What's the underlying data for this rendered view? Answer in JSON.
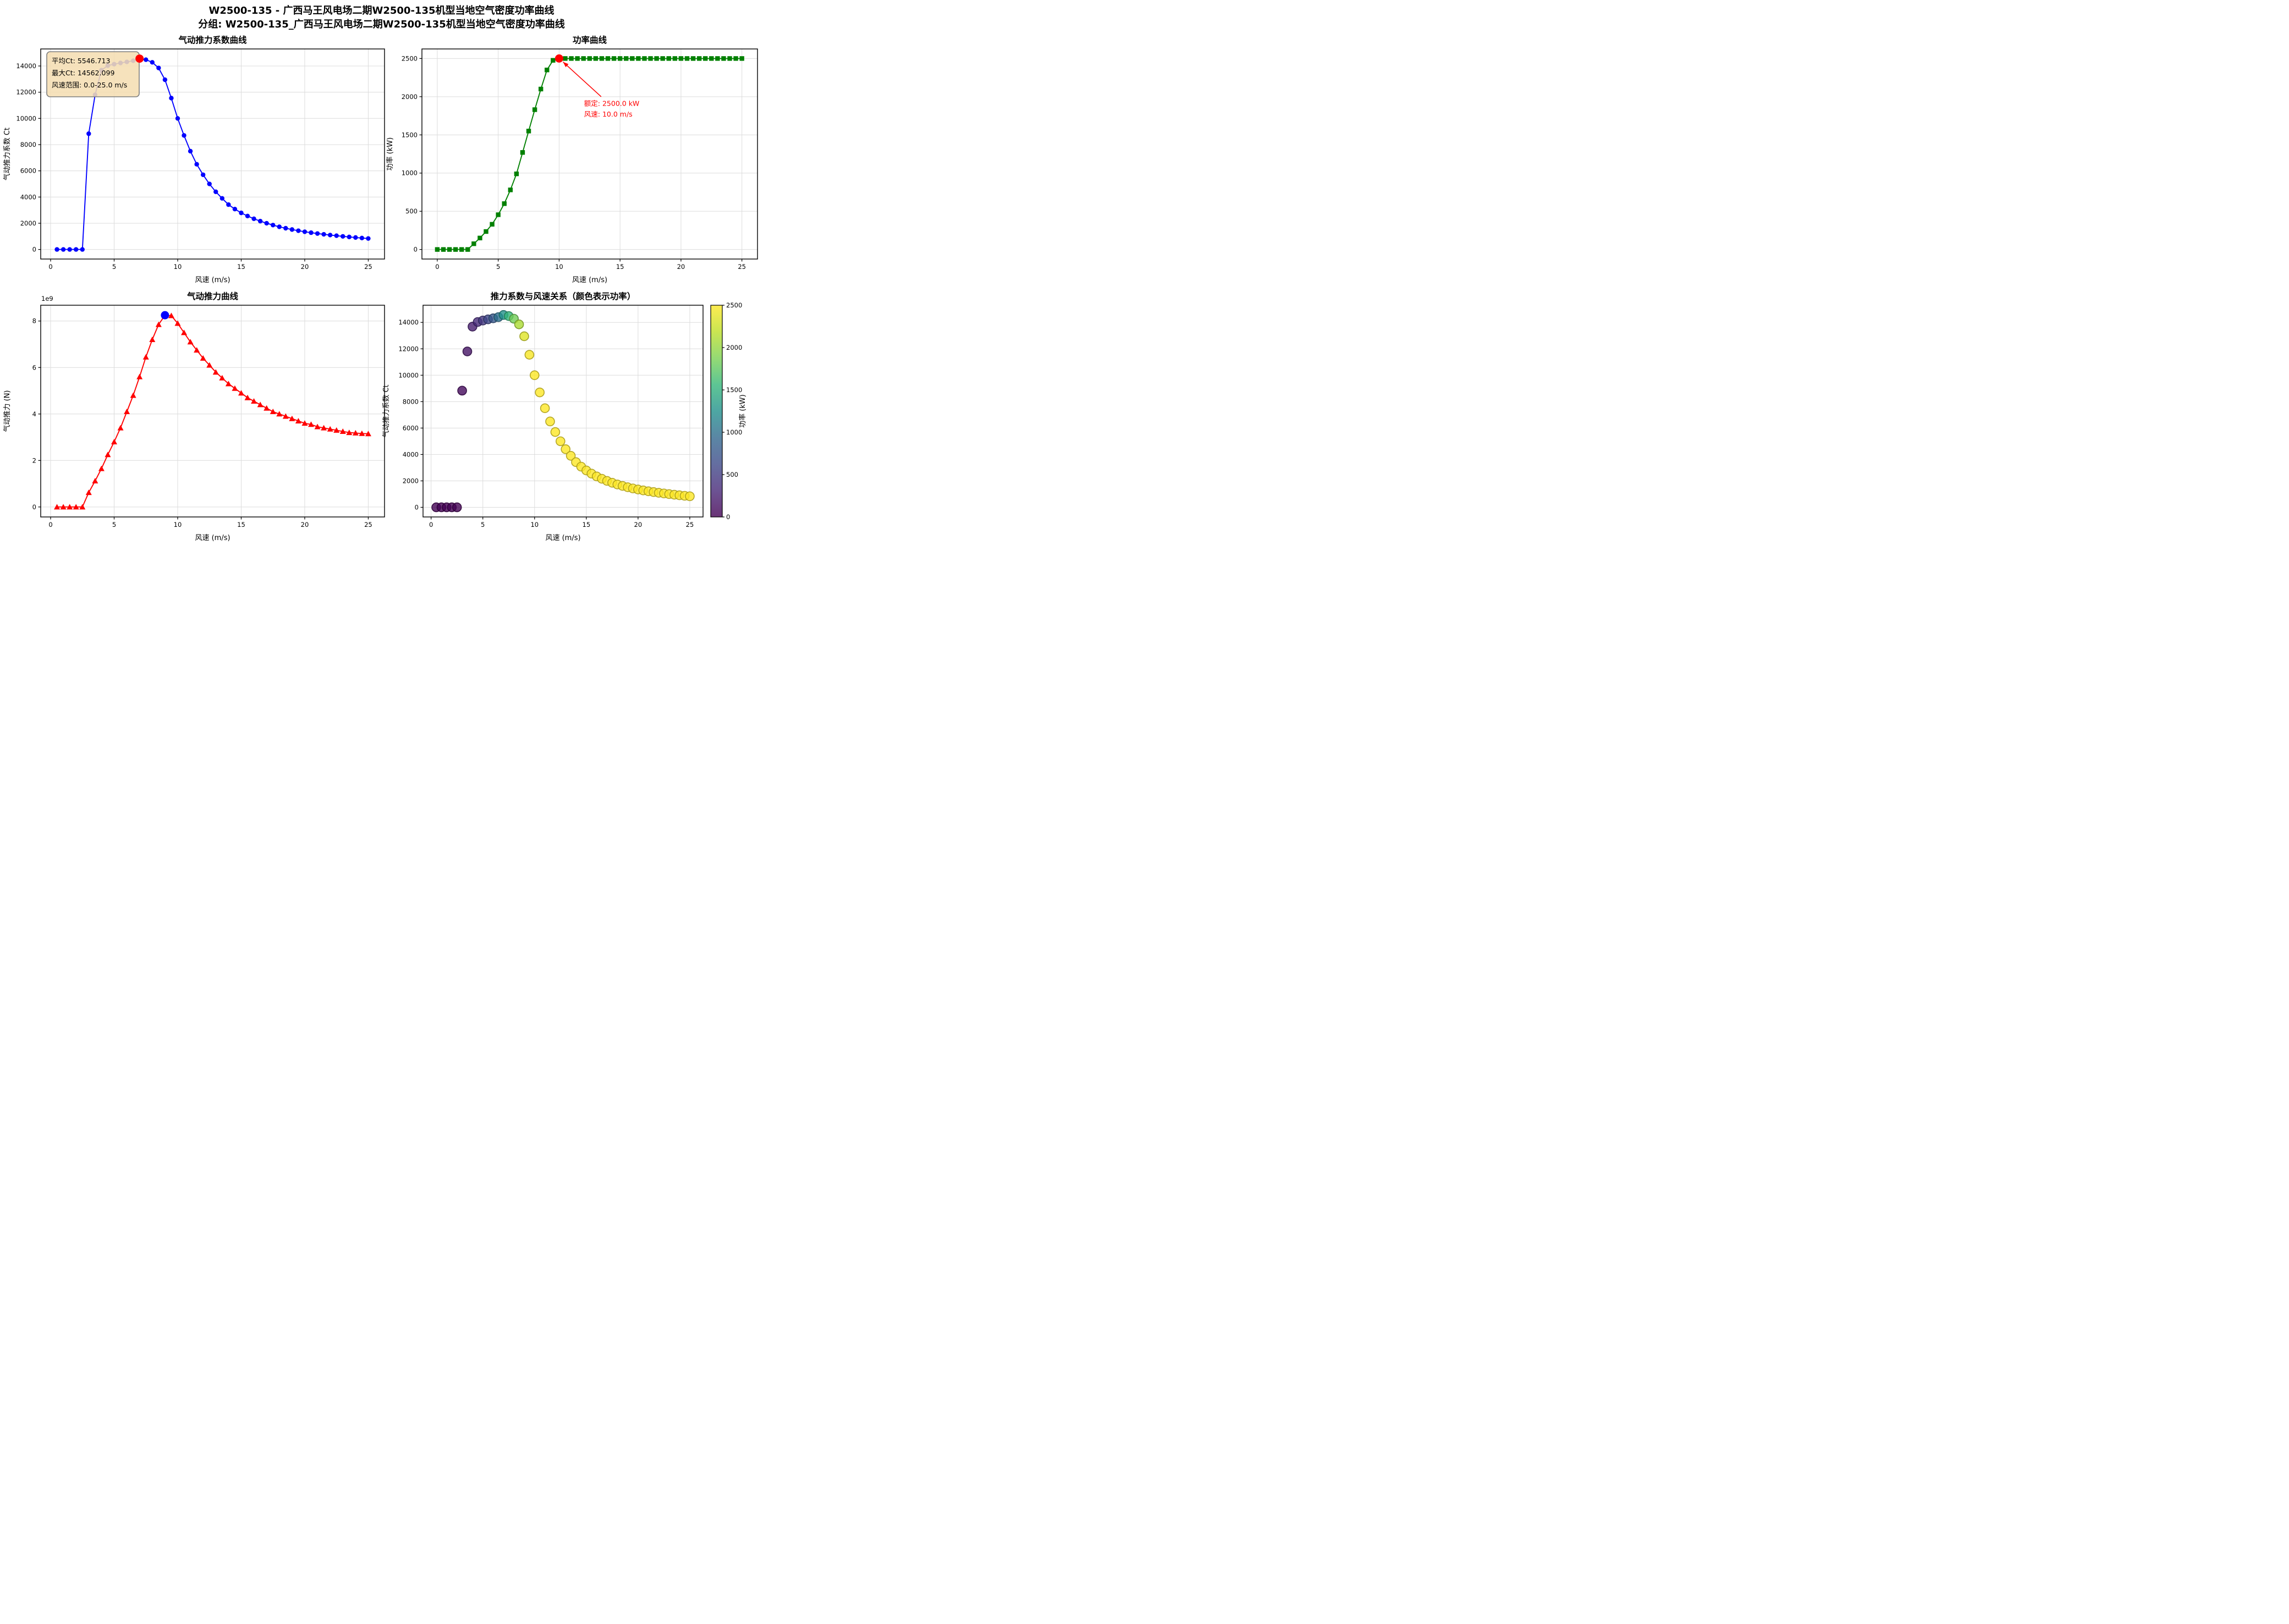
{
  "figure": {
    "title": "W2500-135 - 广西马王风电场二期W2500-135机型当地空气密度功率曲线",
    "subtitle": "分组: W2500-135_广西马王风电场二期W2500-135机型当地空气密度功率曲线",
    "background": "#ffffff",
    "grid_color": "#dcdcdc",
    "spine_color": "#000000"
  },
  "chart_data": [
    {
      "id": "ct_curve",
      "type": "line",
      "title": "气动推力系数曲线",
      "xlabel": "风速 (m/s)",
      "ylabel": "气动推力系数 Ct",
      "line_color": "#0000ff",
      "marker": "circle",
      "grid": true,
      "xlim": [
        -0.78,
        26.28
      ],
      "ylim": [
        -730,
        15300
      ],
      "xticks": [
        0,
        5,
        10,
        15,
        20,
        25
      ],
      "yticks": [
        0,
        2000,
        4000,
        6000,
        8000,
        10000,
        12000,
        14000
      ],
      "x": [
        0.5,
        1,
        1.5,
        2,
        2.5,
        3,
        3.5,
        4,
        4.5,
        5,
        5.5,
        6,
        6.5,
        7,
        7.5,
        8,
        8.5,
        9,
        9.5,
        10,
        10.5,
        11,
        11.5,
        12,
        12.5,
        13,
        13.5,
        14,
        14.5,
        15,
        15.5,
        16,
        16.5,
        17,
        17.5,
        18,
        18.5,
        19,
        19.5,
        20,
        20.5,
        21,
        21.5,
        22,
        22.5,
        23,
        23.5,
        24,
        24.5,
        25
      ],
      "y": [
        0,
        0,
        0,
        0,
        0,
        8832,
        11800,
        13680,
        14030,
        14140,
        14230,
        14310,
        14400,
        14562,
        14480,
        14280,
        13850,
        12950,
        11550,
        10000,
        8700,
        7500,
        6500,
        5700,
        5000,
        4400,
        3900,
        3420,
        3080,
        2790,
        2550,
        2340,
        2160,
        2000,
        1860,
        1730,
        1620,
        1520,
        1430,
        1350,
        1280,
        1215,
        1155,
        1100,
        1050,
        1000,
        955,
        912,
        873,
        837
      ],
      "max_point": {
        "x": 7.0,
        "y": 14562.099,
        "color": "#ff0000"
      },
      "info_box": {
        "lines": [
          "平均Ct: 5546.713",
          "最大Ct: 14562.099",
          "风速范围: 0.0-25.0 m/s"
        ],
        "fill": "#f5deb3",
        "border": "#7f7f7f"
      }
    },
    {
      "id": "power_curve",
      "type": "line",
      "title": "功率曲线",
      "xlabel": "风速 (m/s)",
      "ylabel": "功率 (kW)",
      "line_color": "#008000",
      "marker": "square",
      "grid": true,
      "xlim": [
        -1.26,
        26.28
      ],
      "ylim": [
        -125,
        2625
      ],
      "xticks": [
        0,
        5,
        10,
        15,
        20,
        25
      ],
      "yticks": [
        0,
        500,
        1000,
        1500,
        2000,
        2500
      ],
      "x": [
        0,
        0.5,
        1,
        1.5,
        2,
        2.5,
        3,
        3.5,
        4,
        4.5,
        5,
        5.5,
        6,
        6.5,
        7,
        7.5,
        8,
        8.5,
        9,
        9.5,
        10,
        10.5,
        11,
        11.5,
        12,
        12.5,
        13,
        13.5,
        14,
        14.5,
        15,
        15.5,
        16,
        16.5,
        17,
        17.5,
        18,
        18.5,
        19,
        19.5,
        20,
        20.5,
        21,
        21.5,
        22,
        22.5,
        23,
        23.5,
        24,
        24.5,
        25
      ],
      "y": [
        0,
        0,
        0,
        0,
        0,
        0,
        75,
        150,
        235,
        330,
        455,
        600,
        780,
        990,
        1270,
        1550,
        1830,
        2100,
        2350,
        2476,
        2500,
        2500,
        2500,
        2500,
        2500,
        2500,
        2500,
        2500,
        2500,
        2500,
        2500,
        2500,
        2500,
        2500,
        2500,
        2500,
        2500,
        2500,
        2500,
        2500,
        2500,
        2500,
        2500,
        2500,
        2500,
        2500,
        2500,
        2500,
        2500,
        2500,
        2500
      ],
      "rated_point": {
        "x": 10.0,
        "y": 2500.0,
        "color": "#ff0000"
      },
      "annotation": {
        "lines": [
          "额定: 2500.0 kW",
          "风速: 10.0 m/s"
        ],
        "color": "#ff0000",
        "text_xy": [
          12.05,
          1880
        ],
        "line_gap_kw": 140,
        "arrow_from": [
          13.45,
          2000
        ],
        "arrow_to": [
          10.32,
          2455
        ]
      }
    },
    {
      "id": "thrust_curve",
      "type": "line",
      "title": "气动推力曲线",
      "xlabel": "风速 (m/s)",
      "ylabel": "气动推力 (N)",
      "offset_text": "1e9",
      "y_scale": "1e9",
      "line_color": "#ff0000",
      "marker": "triangle",
      "grid": true,
      "xlim": [
        -0.78,
        26.28
      ],
      "ylim": [
        -0.43,
        8.68
      ],
      "xticks": [
        0,
        5,
        10,
        15,
        20,
        25
      ],
      "yticks": [
        0,
        2,
        4,
        6,
        8
      ],
      "x": [
        0.5,
        1,
        1.5,
        2,
        2.5,
        3,
        3.5,
        4,
        4.5,
        5,
        5.5,
        6,
        6.5,
        7,
        7.5,
        8,
        8.5,
        9,
        9.5,
        10,
        10.5,
        11,
        11.5,
        12,
        12.5,
        13,
        13.5,
        14,
        14.5,
        15,
        15.5,
        16,
        16.5,
        17,
        17.5,
        18,
        18.5,
        19,
        19.5,
        20,
        20.5,
        21,
        21.5,
        22,
        22.5,
        23,
        23.5,
        24,
        24.5,
        25
      ],
      "y": [
        0,
        0,
        0,
        0,
        0,
        0.62,
        1.12,
        1.65,
        2.25,
        2.8,
        3.4,
        4.1,
        4.8,
        5.6,
        6.45,
        7.2,
        7.85,
        8.25,
        8.23,
        7.9,
        7.5,
        7.1,
        6.75,
        6.4,
        6.1,
        5.8,
        5.55,
        5.3,
        5.1,
        4.9,
        4.7,
        4.55,
        4.4,
        4.25,
        4.1,
        4.0,
        3.9,
        3.8,
        3.7,
        3.6,
        3.55,
        3.45,
        3.4,
        3.35,
        3.3,
        3.25,
        3.2,
        3.18,
        3.16,
        3.15
      ],
      "max_point": {
        "x": 9.0,
        "y": 8.25,
        "color": "#0000ff"
      }
    },
    {
      "id": "ct_power_scatter",
      "type": "scatter",
      "title": "推力系数与风速关系（颜色表示功率）",
      "xlabel": "风速 (m/s)",
      "ylabel": "气动推力系数 Ct",
      "marker": "circle",
      "grid": true,
      "alpha": 0.8,
      "xlim": [
        -0.78,
        26.28
      ],
      "ylim": [
        -730,
        15300
      ],
      "xticks": [
        0,
        5,
        10,
        15,
        20,
        25
      ],
      "yticks": [
        0,
        2000,
        4000,
        6000,
        8000,
        10000,
        12000,
        14000
      ],
      "x": [
        0.5,
        1,
        1.5,
        2,
        2.5,
        3,
        3.5,
        4,
        4.5,
        5,
        5.5,
        6,
        6.5,
        7,
        7.5,
        8,
        8.5,
        9,
        9.5,
        10,
        10.5,
        11,
        11.5,
        12,
        12.5,
        13,
        13.5,
        14,
        14.5,
        15,
        15.5,
        16,
        16.5,
        17,
        17.5,
        18,
        18.5,
        19,
        19.5,
        20,
        20.5,
        21,
        21.5,
        22,
        22.5,
        23,
        23.5,
        24,
        24.5,
        25
      ],
      "y": [
        0,
        0,
        0,
        0,
        0,
        8832,
        11800,
        13680,
        14030,
        14140,
        14230,
        14310,
        14400,
        14562,
        14480,
        14280,
        13850,
        12950,
        11550,
        10000,
        8700,
        7500,
        6500,
        5700,
        5000,
        4400,
        3900,
        3420,
        3080,
        2790,
        2550,
        2340,
        2160,
        2000,
        1860,
        1730,
        1620,
        1520,
        1430,
        1350,
        1280,
        1215,
        1155,
        1100,
        1050,
        1000,
        955,
        912,
        873,
        837
      ],
      "c": [
        0,
        0,
        0,
        0,
        0,
        75,
        150,
        235,
        330,
        455,
        600,
        780,
        990,
        1270,
        1550,
        1830,
        2100,
        2350,
        2476,
        2500,
        2500,
        2500,
        2500,
        2500,
        2500,
        2500,
        2500,
        2500,
        2500,
        2500,
        2500,
        2500,
        2500,
        2500,
        2500,
        2500,
        2500,
        2500,
        2500,
        2500,
        2500,
        2500,
        2500,
        2500,
        2500,
        2500,
        2500,
        2500,
        2500,
        2500
      ],
      "colormap": "viridis",
      "colorbar": {
        "label": "功率 (kW)",
        "ticks": [
          0,
          500,
          1000,
          1500,
          2000,
          2500
        ],
        "vmin": 0,
        "vmax": 2500
      }
    }
  ]
}
